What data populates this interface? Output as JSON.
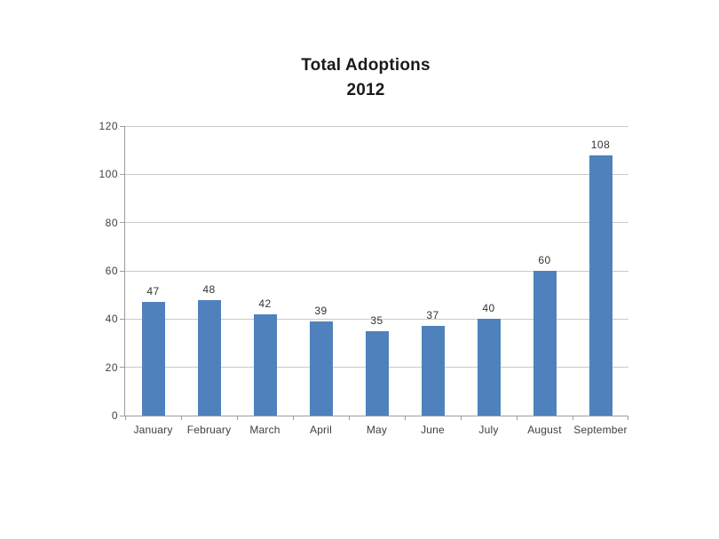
{
  "title": {
    "line1": "Total Adoptions",
    "line2": "2012"
  },
  "chart_data": {
    "type": "bar",
    "title": "Total Adoptions 2012",
    "categories": [
      "January",
      "February",
      "March",
      "April",
      "May",
      "June",
      "July",
      "August",
      "September"
    ],
    "values": [
      47,
      48,
      42,
      39,
      35,
      37,
      40,
      60,
      108
    ],
    "data_labels": [
      "47",
      "48",
      "42",
      "39",
      "35",
      "37",
      "40",
      "60",
      "108"
    ],
    "xlabel": "",
    "ylabel": "",
    "y_ticks": [
      0,
      20,
      40,
      60,
      80,
      100,
      120
    ],
    "ylim": [
      0,
      120
    ],
    "grid": "horizontal-on",
    "legend": "none",
    "colors": {
      "bar": "#4F81BD",
      "gridline": "#C9C9C9",
      "axis": "#9C9C9C",
      "tick_label": "#404040",
      "data_label": "#333333",
      "title": "#1A1A1A"
    }
  }
}
